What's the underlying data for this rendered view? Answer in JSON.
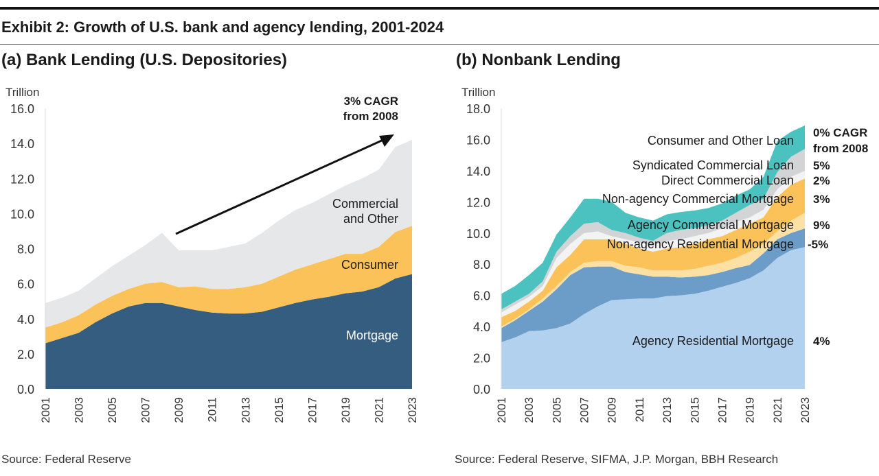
{
  "title": "Exhibit 2: Growth of U.S. bank and agency lending, 2001-2024",
  "panels": [
    {
      "subtitle": "(a) Bank Lending (U.S. Depositories)",
      "source": "Source: Federal Reserve"
    },
    {
      "subtitle": "(b) Nonbank Lending",
      "source": "Source: Federal Reserve, SIFMA, J.P. Morgan, BBH Research"
    }
  ],
  "chart_data": [
    {
      "type": "area",
      "stacked": true,
      "ylabel": "Trillion",
      "ylim": [
        0,
        16
      ],
      "yticks": [
        "0.0",
        "2.0",
        "4.0",
        "6.0",
        "8.0",
        "10.0",
        "12.0",
        "14.0",
        "16.0"
      ],
      "xticks": [
        "2001",
        "2003",
        "2005",
        "2007",
        "2009",
        "2011",
        "2013",
        "2015",
        "2017",
        "2019",
        "2021",
        "2023"
      ],
      "x": [
        2001,
        2002,
        2003,
        2004,
        2005,
        2006,
        2007,
        2008,
        2009,
        2010,
        2011,
        2012,
        2013,
        2014,
        2015,
        2016,
        2017,
        2018,
        2019,
        2020,
        2021,
        2022,
        2023
      ],
      "grid": false,
      "series": [
        {
          "name": "Mortgage",
          "color": "#355d7f",
          "label_color": "#ffffff",
          "values": [
            2.6,
            2.9,
            3.2,
            3.8,
            4.3,
            4.7,
            4.9,
            4.9,
            4.7,
            4.5,
            4.35,
            4.3,
            4.3,
            4.4,
            4.65,
            4.9,
            5.1,
            5.25,
            5.45,
            5.55,
            5.8,
            6.3,
            6.55
          ]
        },
        {
          "name": "Consumer",
          "color": "#fbc259",
          "label_color": "#1a1a1a",
          "values": [
            0.9,
            0.9,
            1.0,
            1.0,
            1.0,
            1.0,
            1.1,
            1.2,
            1.1,
            1.35,
            1.35,
            1.4,
            1.5,
            1.6,
            1.75,
            1.9,
            2.0,
            2.15,
            2.25,
            2.15,
            2.3,
            2.65,
            2.75
          ]
        },
        {
          "name": "Commercial and Other",
          "name_lines": [
            "Commercial",
            "and Other"
          ],
          "color": "#e6e7e9",
          "label_color": "#1a1a1a",
          "values": [
            1.4,
            1.4,
            1.4,
            1.5,
            1.7,
            1.9,
            2.2,
            2.8,
            2.1,
            2.05,
            2.2,
            2.4,
            2.5,
            2.9,
            3.2,
            3.4,
            3.5,
            3.7,
            3.9,
            4.3,
            4.4,
            4.85,
            4.9
          ]
        }
      ],
      "annotation": {
        "lines": [
          "3% CAGR",
          "from 2008"
        ],
        "arrow_from": [
          2009,
          7.9
        ],
        "arrow_to": [
          2022.6,
          14.5
        ]
      }
    },
    {
      "type": "area",
      "stacked": true,
      "ylabel": "Trillion",
      "ylim": [
        0,
        18
      ],
      "yticks": [
        "0.0",
        "2.0",
        "4.0",
        "6.0",
        "8.0",
        "10.0",
        "12.0",
        "14.0",
        "16.0",
        "18.0"
      ],
      "xticks": [
        "2001",
        "2003",
        "2005",
        "2007",
        "2009",
        "2011",
        "2013",
        "2015",
        "2017",
        "2019",
        "2021",
        "2023"
      ],
      "x": [
        2001,
        2002,
        2003,
        2004,
        2005,
        2006,
        2007,
        2008,
        2009,
        2010,
        2011,
        2012,
        2013,
        2014,
        2015,
        2016,
        2017,
        2018,
        2019,
        2020,
        2021,
        2022,
        2023
      ],
      "grid": false,
      "series": [
        {
          "name": "Agency Residential Mortgage",
          "cagr": "4%",
          "color": "#b2d1ee",
          "values": [
            3.0,
            3.3,
            3.7,
            3.75,
            3.9,
            4.2,
            4.8,
            5.3,
            5.7,
            5.75,
            5.8,
            5.8,
            5.95,
            6.0,
            6.1,
            6.3,
            6.55,
            6.8,
            7.1,
            7.6,
            8.4,
            8.9,
            9.1
          ]
        },
        {
          "name": "Non-agency Residential Mortgage",
          "cagr": "-5%",
          "color": "#6b9dc8",
          "values": [
            0.9,
            1.1,
            1.3,
            1.85,
            2.5,
            3.1,
            3.0,
            2.55,
            2.15,
            1.75,
            1.55,
            1.4,
            1.25,
            1.15,
            1.1,
            1.0,
            0.95,
            0.95,
            0.85,
            1.1,
            1.2,
            1.1,
            1.2
          ]
        },
        {
          "name": "Agency Commercial Mortgage",
          "cagr": "9%",
          "color": "#fde0a4",
          "values": [
            0.1,
            0.1,
            0.1,
            0.2,
            0.2,
            0.2,
            0.3,
            0.35,
            0.35,
            0.4,
            0.45,
            0.4,
            0.4,
            0.45,
            0.5,
            0.6,
            0.6,
            0.65,
            0.85,
            0.6,
            0.5,
            0.8,
            1.0
          ]
        },
        {
          "name": "Non-agency Commercial Mortgage",
          "cagr": "3%",
          "color": "#fbc259",
          "values": [
            0.6,
            0.5,
            0.5,
            0.5,
            1.2,
            1.1,
            1.5,
            1.4,
            1.4,
            1.4,
            1.2,
            1.2,
            1.4,
            1.5,
            1.6,
            1.7,
            1.7,
            1.8,
            1.8,
            1.7,
            2.2,
            2.3,
            2.2
          ]
        },
        {
          "name": "Direct Commercial Loan",
          "cagr": "2%",
          "color": "#f3f3f4",
          "values": [
            0.3,
            0.4,
            0.3,
            0.3,
            0.6,
            0.7,
            0.4,
            0.5,
            0.2,
            0.3,
            0.4,
            0.4,
            0.5,
            0.5,
            0.5,
            0.4,
            0.5,
            0.5,
            0.4,
            0.5,
            0.5,
            0.5,
            0.5
          ]
        },
        {
          "name": "Syndicated Commercial Loan",
          "cagr": "5%",
          "color": "#d3d4d6",
          "values": [
            0.2,
            0.2,
            0.2,
            0.3,
            0.4,
            0.5,
            0.6,
            0.6,
            0.4,
            0.4,
            0.3,
            0.3,
            0.5,
            0.6,
            0.5,
            0.5,
            0.5,
            0.6,
            0.8,
            0.7,
            1.1,
            1.3,
            1.4
          ]
        },
        {
          "name": "Consumer and Other Loan",
          "cagr_lines": [
            "0% CAGR",
            "from 2008"
          ],
          "color": "#4cc2c0",
          "values": [
            1.0,
            1.0,
            1.2,
            1.2,
            1.1,
            1.2,
            1.6,
            1.5,
            1.8,
            1.3,
            1.3,
            1.3,
            1.2,
            1.15,
            1.15,
            1.1,
            1.1,
            1.1,
            1.0,
            1.4,
            2.0,
            1.6,
            1.5
          ]
        }
      ]
    }
  ]
}
